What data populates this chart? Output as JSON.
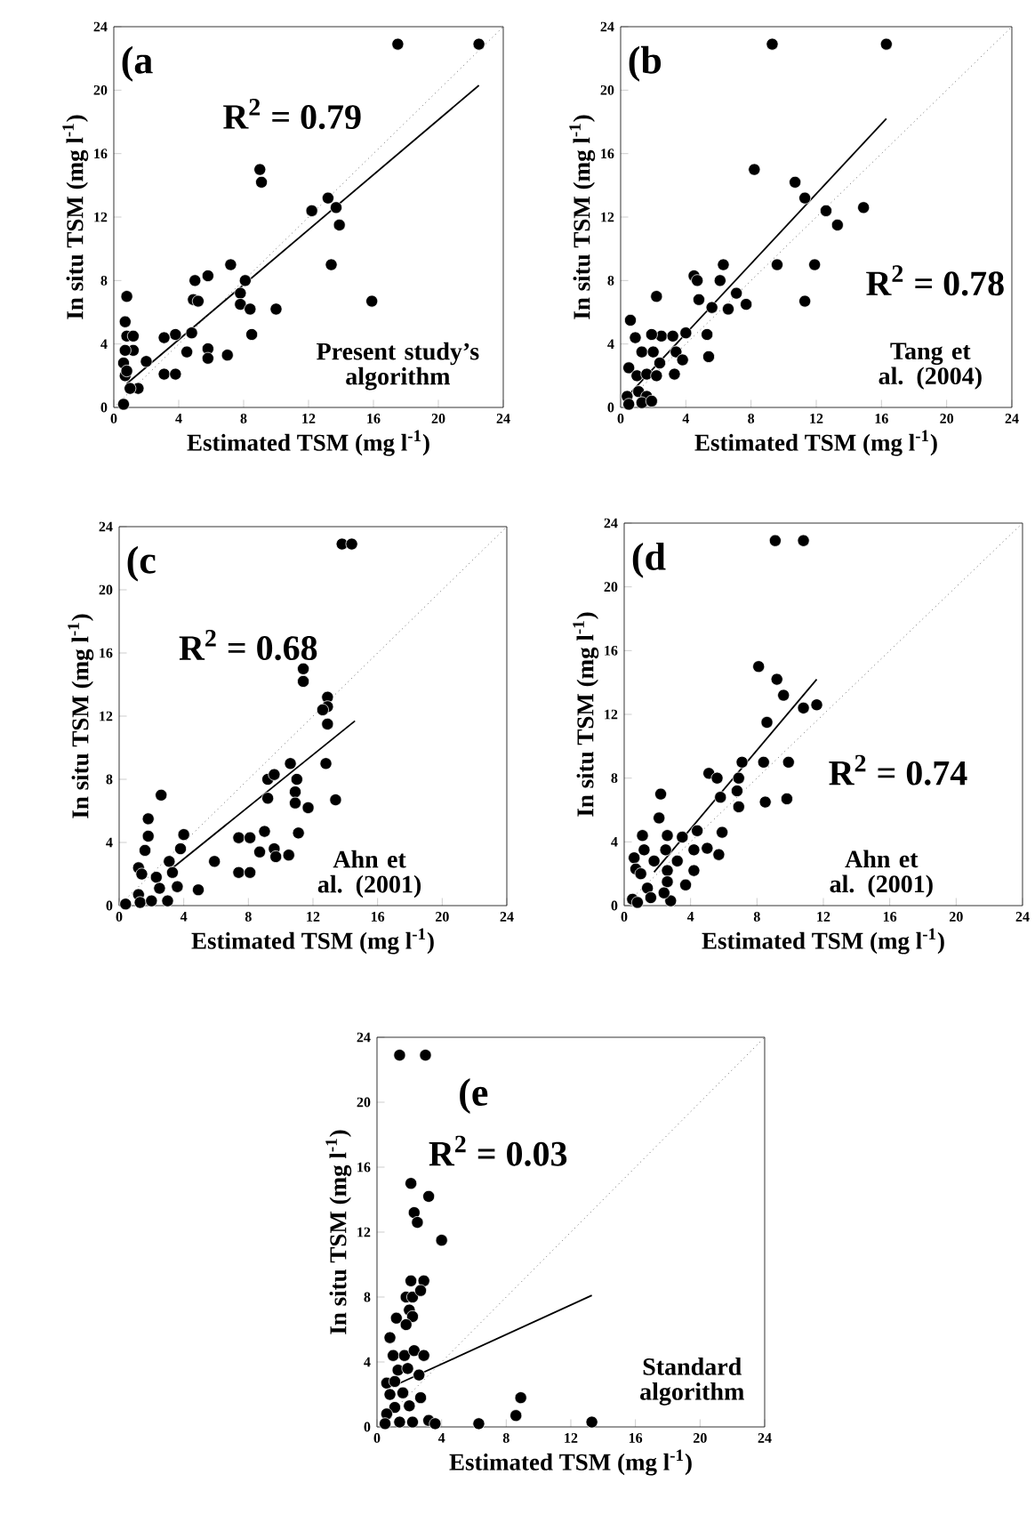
{
  "chart_data": [
    {
      "type": "scatter",
      "marker": "circle",
      "xlabel": "Estimated TSM (mg l$^{-1}$)",
      "ylabel": "In situ TSM (mg l$^{-1}$)",
      "xlim": [
        0,
        24
      ],
      "ylim": [
        0,
        24
      ],
      "xticks": [
        0,
        4,
        8,
        12,
        16,
        20,
        24
      ],
      "yticks": [
        0,
        4,
        8,
        12,
        16,
        20,
        24
      ],
      "annotations": [
        "(a",
        "R$^{2}$ = 0.79",
        "Present study’s algorithm"
      ],
      "series": [
        {
          "color": "#000000",
          "x": [
            17.5,
            22.5,
            9,
            9.1,
            13.2,
            13.7,
            12.2,
            13.9,
            13.4,
            7.2,
            5,
            5.8,
            8.1,
            7.8,
            4.9,
            7.8,
            8.4,
            10,
            15.9,
            8.5,
            4.8,
            3.8,
            3.1,
            4.5,
            5.8,
            5.8,
            7,
            3.1,
            3.8,
            2,
            1.5,
            0.8,
            0.7,
            0.8,
            1.2,
            1.2,
            0.7,
            0.6,
            0.7,
            1,
            0.6,
            0.8,
            5.2
          ],
          "values": [
            22.9,
            22.9,
            15,
            14.2,
            13.2,
            12.6,
            12.4,
            11.5,
            9,
            9,
            8,
            8.3,
            8,
            7.2,
            6.8,
            6.5,
            6.2,
            6.2,
            6.7,
            4.6,
            4.7,
            4.6,
            4.4,
            3.5,
            3.7,
            3.1,
            3.3,
            2.1,
            2.1,
            2.9,
            1.2,
            7,
            5.4,
            4.5,
            4.5,
            3.6,
            3.6,
            2.8,
            2,
            1.2,
            0.2,
            2.3,
            6.7
          ]
        },
        {
          "type": "line",
          "marker": "none",
          "color": "#000000",
          "x": [
            0.8,
            22.5
          ],
          "values": [
            1.5,
            20.3
          ]
        },
        {
          "type": "line",
          "marker": "none",
          "color": "#666666",
          "line_style": "dotted",
          "x": [
            0,
            24
          ],
          "values": [
            0,
            24
          ]
        }
      ]
    },
    {
      "type": "scatter",
      "marker": "circle",
      "xlabel": "Estimated TSM (mg l$^{-1}$)",
      "ylabel": "In situ TSM (mg l$^{-1}$)",
      "xlim": [
        0,
        24
      ],
      "ylim": [
        0,
        24
      ],
      "xticks": [
        0,
        4,
        8,
        12,
        16,
        20,
        24
      ],
      "yticks": [
        0,
        4,
        8,
        12,
        16,
        20,
        24
      ],
      "annotations": [
        "(b",
        "R$^{2}$ = 0.78",
        "Tang et al. (2004)"
      ],
      "series": [
        {
          "color": "#000000",
          "x": [
            9.3,
            16.3,
            8.2,
            10.7,
            11.3,
            12.6,
            14.9,
            13.3,
            9.6,
            11.9,
            11.3,
            6.3,
            4.5,
            4.7,
            6.1,
            4.8,
            5.6,
            6.6,
            7.1,
            7.7,
            2.2,
            5.3,
            5.4,
            4,
            3.4,
            3.3,
            3.8,
            2.5,
            3.2,
            1.9,
            0.6,
            0.9,
            0.5,
            1.3,
            2,
            1,
            1.6,
            2.2,
            1.1,
            1.6,
            0.4,
            0.5,
            1.3,
            1.9,
            2.4
          ],
          "values": [
            22.9,
            22.9,
            15,
            14.2,
            13.2,
            12.4,
            12.6,
            11.5,
            9,
            9,
            6.7,
            9,
            8.3,
            8,
            8,
            6.8,
            6.3,
            6.2,
            7.2,
            6.5,
            7,
            4.6,
            3.2,
            4.7,
            3.5,
            2.1,
            3,
            4.5,
            4.5,
            4.6,
            5.5,
            4.4,
            2.5,
            3.5,
            3.5,
            2,
            2.1,
            2,
            1,
            0.7,
            0.7,
            0.2,
            0.3,
            0.4,
            2.8
          ]
        },
        {
          "type": "line",
          "marker": "none",
          "color": "#000000",
          "x": [
            0.5,
            16.3
          ],
          "values": [
            0.8,
            18.2
          ]
        },
        {
          "type": "line",
          "marker": "none",
          "color": "#666666",
          "line_style": "dotted",
          "x": [
            0,
            24
          ],
          "values": [
            0,
            24
          ]
        }
      ]
    },
    {
      "type": "scatter",
      "marker": "circle",
      "xlabel": "Estimated TSM (mg l$^{-1}$)",
      "ylabel": "In situ TSM (mg l$^{-1}$)",
      "xlim": [
        0,
        24
      ],
      "ylim": [
        0,
        24
      ],
      "xticks": [
        0,
        4,
        8,
        12,
        16,
        20,
        24
      ],
      "yticks": [
        0,
        4,
        8,
        12,
        16,
        20,
        24
      ],
      "annotations": [
        "(c",
        "R$^{2}$ = 0.68",
        "Ahn et al. (2001)"
      ],
      "series": [
        {
          "color": "#000000",
          "x": [
            13.8,
            14.4,
            11.4,
            11.4,
            12.9,
            12.9,
            12.6,
            12.9,
            12.8,
            10.6,
            9.2,
            9.6,
            11,
            10.9,
            9.2,
            10.9,
            11.7,
            13.4,
            11.1,
            9,
            7.4,
            8.1,
            8.7,
            9.6,
            9.7,
            10.5,
            7.4,
            8.1,
            5.9,
            4.9,
            4,
            3.8,
            2.6,
            1.8,
            1.8,
            1.6,
            1.2,
            3.1,
            3.3,
            1.4,
            2.3,
            3.6,
            2.5,
            1.2,
            1.3,
            2,
            3,
            0.4
          ],
          "values": [
            22.9,
            22.9,
            15,
            14.2,
            13.2,
            12.6,
            12.4,
            11.5,
            9,
            9,
            8,
            8.3,
            8,
            7.2,
            6.8,
            6.5,
            6.2,
            6.7,
            4.6,
            4.7,
            4.3,
            4.3,
            3.4,
            3.6,
            3.1,
            3.2,
            2.1,
            2.1,
            2.8,
            1,
            4.5,
            3.6,
            7,
            5.5,
            4.4,
            3.5,
            2.4,
            2.8,
            2.1,
            2,
            1.8,
            1.2,
            1.1,
            0.7,
            0.2,
            0.3,
            0.3,
            0.1
          ]
        },
        {
          "type": "line",
          "marker": "none",
          "color": "#000000",
          "x": [
            3.2,
            14.6
          ],
          "values": [
            2.3,
            11.7
          ]
        },
        {
          "type": "line",
          "marker": "none",
          "color": "#666666",
          "line_style": "dotted",
          "x": [
            0,
            24
          ],
          "values": [
            0,
            24
          ]
        }
      ]
    },
    {
      "type": "scatter",
      "marker": "circle",
      "xlabel": "Estimated TSM (mg l$^{-1}$)",
      "ylabel": "In situ TSM (mg l$^{-1}$)",
      "xlim": [
        0,
        24
      ],
      "ylim": [
        0,
        24
      ],
      "xticks": [
        0,
        4,
        8,
        12,
        16,
        20,
        24
      ],
      "yticks": [
        0,
        4,
        8,
        12,
        16,
        20,
        24
      ],
      "annotations": [
        "(d",
        "R$^{2}$ = 0.74",
        "Ahn et al. (2001)"
      ],
      "series": [
        {
          "color": "#000000",
          "x": [
            9.1,
            10.8,
            8.1,
            9.2,
            9.6,
            11.6,
            10.8,
            8.6,
            7.1,
            8.4,
            9.9,
            5.1,
            5.6,
            6.9,
            6.8,
            5.8,
            6.9,
            8.5,
            9.8,
            2.2,
            2.1,
            1.1,
            4.4,
            5.9,
            3.5,
            4.2,
            5,
            5.7,
            4.2,
            3.2,
            2.6,
            2.5,
            1.2,
            0.6,
            0.7,
            1.8,
            2.6,
            3.7,
            1,
            2.6,
            1.4,
            0.5,
            0.8,
            1.6,
            2.8,
            2.4
          ],
          "values": [
            22.9,
            22.9,
            15,
            14.2,
            13.2,
            12.6,
            12.4,
            11.5,
            9,
            9,
            9,
            8.3,
            8,
            8,
            7.2,
            6.8,
            6.2,
            6.5,
            6.7,
            7,
            5.5,
            4.4,
            4.7,
            4.6,
            4.3,
            3.5,
            3.6,
            3.2,
            2.2,
            2.8,
            4.4,
            3.5,
            3.5,
            3,
            2.3,
            2.8,
            2.2,
            1.3,
            2,
            1.5,
            1.1,
            0.4,
            0.2,
            0.5,
            0.3,
            0.8
          ]
        },
        {
          "type": "line",
          "marker": "none",
          "color": "#000000",
          "x": [
            1.8,
            11.6
          ],
          "values": [
            2.1,
            14.2
          ]
        },
        {
          "type": "line",
          "marker": "none",
          "color": "#666666",
          "line_style": "dotted",
          "x": [
            0,
            24
          ],
          "values": [
            0,
            24
          ]
        }
      ]
    },
    {
      "type": "scatter",
      "marker": "circle",
      "xlabel": "Estimated TSM (mg l$^{-1}$)",
      "ylabel": "In situ TSM (mg l$^{-1}$)",
      "xlim": [
        0,
        24
      ],
      "ylim": [
        0,
        24
      ],
      "xticks": [
        0,
        4,
        8,
        12,
        16,
        20,
        24
      ],
      "yticks": [
        0,
        4,
        8,
        12,
        16,
        20,
        24
      ],
      "annotations": [
        "(e",
        "R$^{2}$ = 0.03",
        "Standard algorithm"
      ],
      "series": [
        {
          "color": "#000000",
          "x": [
            1.4,
            3,
            2.1,
            3.2,
            2.3,
            2.5,
            4,
            2.1,
            2.9,
            1.8,
            2.2,
            2.7,
            1.2,
            2,
            2.2,
            1.8,
            0.8,
            1,
            1.7,
            2.3,
            2.9,
            1.3,
            1.9,
            2.6,
            0.6,
            1.1,
            0.8,
            1.6,
            2.7,
            1.1,
            2,
            0.6,
            0.5,
            1.4,
            2.2,
            3.2,
            3.6,
            6.3,
            8.6,
            8.9,
            13.3
          ],
          "values": [
            22.9,
            22.9,
            15,
            14.2,
            13.2,
            12.6,
            11.5,
            9,
            9,
            8,
            8.0,
            8.4,
            6.7,
            7.2,
            6.8,
            6.3,
            5.5,
            4.4,
            4.4,
            4.7,
            4.4,
            3.5,
            3.6,
            3.2,
            2.7,
            2.8,
            2,
            2.1,
            1.8,
            1.2,
            1.3,
            0.8,
            0.2,
            0.3,
            0.3,
            0.4,
            0.2,
            0.2,
            0.7,
            1.8,
            0.3
          ]
        },
        {
          "type": "line",
          "marker": "none",
          "color": "#000000",
          "x": [
            1.2,
            13.3
          ],
          "values": [
            2.6,
            8.1
          ]
        },
        {
          "type": "line",
          "marker": "none",
          "color": "#666666",
          "line_style": "dotted",
          "x": [
            0,
            24
          ],
          "values": [
            0,
            24
          ]
        }
      ]
    }
  ]
}
